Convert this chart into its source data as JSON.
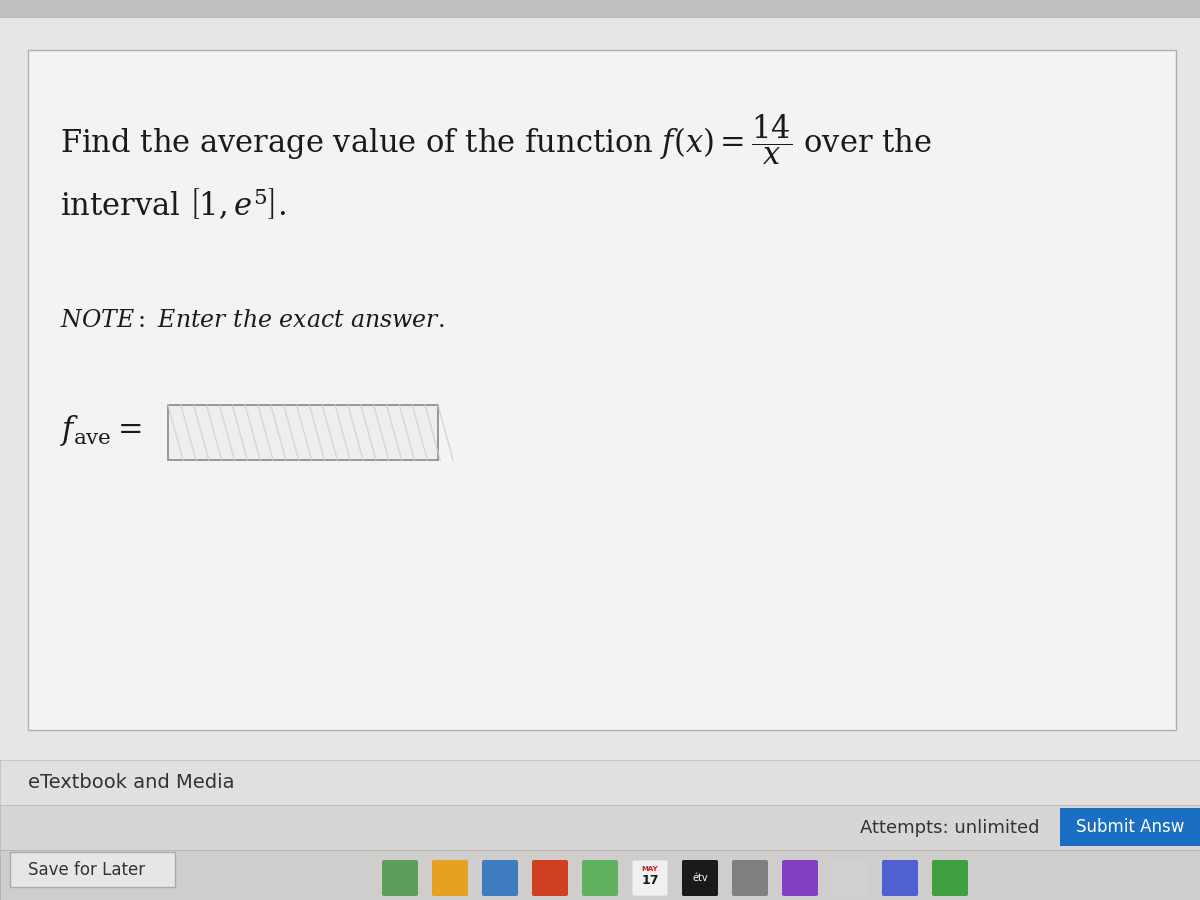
{
  "bg_top": "#d0cece",
  "bg_main": "#e8e6e4",
  "bg_card": "#f5f3f1",
  "bg_bottom_area": "#dddbd9",
  "bg_etextbook_bar": "#e2e0de",
  "bg_attempts_bar": "#d8d6d4",
  "bg_submit_btn": "#1a6fc4",
  "bg_save_bar": "#d0cecc",
  "bg_dock": "#b0aeac",
  "text_main": "#1a1a1a",
  "text_note": "#1a1a1a",
  "text_bottom": "#333333",
  "text_submit": "#ffffff",
  "text_attempts": "#333333",
  "input_box_bg": "#f0eeec",
  "input_box_edge": "#888888",
  "input_hatch_color": "#d0cece",
  "card_border": "#b0aeac",
  "etextbook": "eTextbook and Media",
  "attempts_text": "Attempts: unlimited",
  "submit_text": "Submit Answ",
  "save_text": "Save for Later",
  "date_text": "MAY",
  "date_num": "17"
}
